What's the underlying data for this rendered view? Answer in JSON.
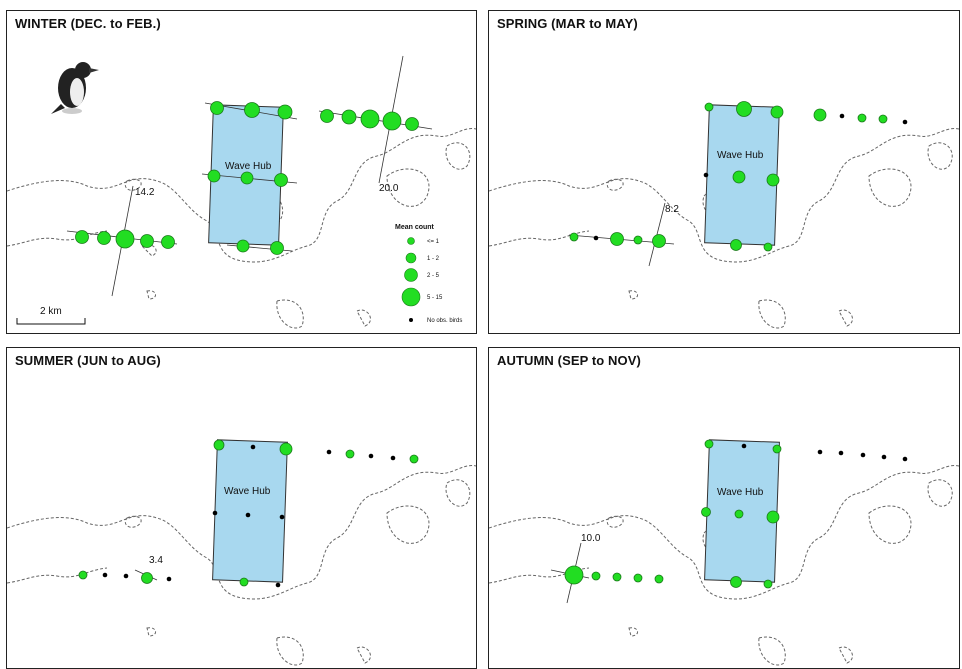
{
  "hub_label": "Wave Hub",
  "colors": {
    "hub_fill": "#a8d8ef",
    "point_fill": "#22dd22",
    "no_obs": "#000000",
    "coast": "#666666"
  },
  "panels": [
    {
      "id": "winter",
      "title": "WINTER (DEC. to FEB.)",
      "icon": "razorbill-bird-icon",
      "annotations": [
        {
          "text": "14.2",
          "near": "west transect"
        },
        {
          "text": "20.0",
          "near": "east transect"
        }
      ]
    },
    {
      "id": "spring",
      "title": "SPRING (MAR to MAY)",
      "annotations": [
        {
          "text": "8.2"
        }
      ]
    },
    {
      "id": "summer",
      "title": "SUMMER (JUN to AUG)",
      "annotations": [
        {
          "text": "3.4"
        }
      ]
    },
    {
      "id": "autumn",
      "title": "AUTUMN (SEP to NOV)",
      "annotations": [
        {
          "text": "10.0"
        }
      ]
    }
  ],
  "legend": {
    "title": "Mean count",
    "classes": [
      "<= 1",
      "1 - 2",
      "2 - 5",
      "5 - 15"
    ],
    "no_obs_label": "No obs. birds"
  },
  "scale_bar": {
    "label": "2 km"
  }
}
